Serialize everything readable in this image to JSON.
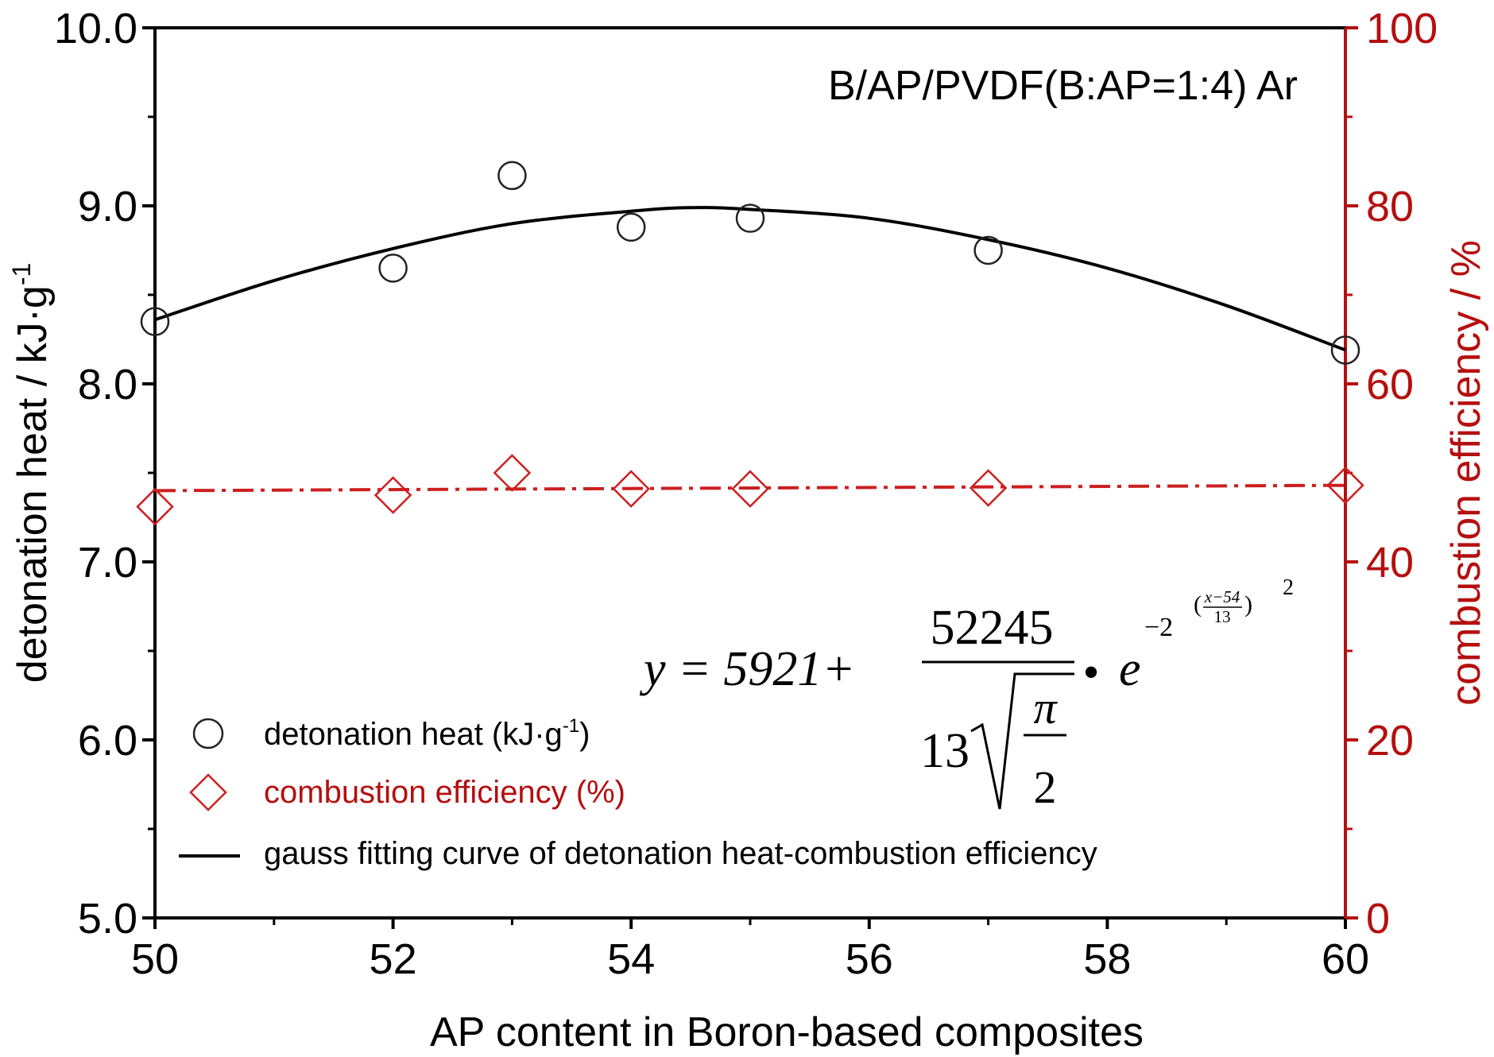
{
  "chart_data": {
    "type": "scatter",
    "annotation": "B/AP/PVDF(B:AP=1:4) Ar",
    "xlabel": "AP content in Boron-based composites",
    "ylabel_left": "detonation heat / kJ·g",
    "ylabel_left_sup": "-1",
    "ylabel_right": "combustion efficiency / %",
    "xlim": [
      50,
      60
    ],
    "ylim_left": [
      5.0,
      10.0
    ],
    "ylim_right": [
      0,
      100
    ],
    "x_ticks": [
      "50",
      "52",
      "54",
      "56",
      "58",
      "60"
    ],
    "y_ticks_left": [
      "5.0",
      "6.0",
      "7.0",
      "8.0",
      "9.0",
      "10.0"
    ],
    "y_ticks_right": [
      "0",
      "20",
      "40",
      "60",
      "80",
      "100"
    ],
    "grid": false,
    "series": [
      {
        "name": "detonation heat (kJ·g",
        "name_sup": "-1",
        "name_suffix": ")",
        "marker": "circle",
        "axis": "left",
        "color": "#222222",
        "x": [
          50,
          52,
          53,
          54,
          55,
          57,
          60
        ],
        "values": [
          8.35,
          8.65,
          9.17,
          8.88,
          8.93,
          8.75,
          8.19
        ]
      },
      {
        "name": "combustion efficiency (%)",
        "marker": "diamond",
        "axis": "right",
        "color": "#cc1f1f",
        "x": [
          50,
          52,
          53,
          54,
          55,
          57,
          60
        ],
        "values": [
          46.2,
          47.5,
          50.0,
          48.2,
          48.2,
          48.3,
          48.6
        ]
      }
    ],
    "fit_curve": {
      "name": "gauss fitting curve of detonation heat-combustion efficiency",
      "axis": "left",
      "color": "#000000",
      "x": [
        50,
        51,
        52,
        53,
        54,
        54.5,
        55,
        56,
        57,
        58,
        59,
        60
      ],
      "values": [
        8.36,
        8.58,
        8.76,
        8.9,
        8.97,
        8.99,
        8.98,
        8.93,
        8.81,
        8.65,
        8.44,
        8.19
      ]
    },
    "reference_line": {
      "axis": "right",
      "style": "dash-dot",
      "color": "#cc1f1f",
      "x": [
        50,
        60
      ],
      "values": [
        48.0,
        48.6
      ]
    },
    "equation": {
      "lhs": "y = 5921+",
      "numerator": "52245",
      "denominator_coef": "13",
      "pi": "π",
      "two": "2",
      "bullet": "•",
      "e": "e",
      "exp_base": "−2",
      "exp_frac_num": "x−54",
      "exp_frac_den": "13",
      "exp_open": "(",
      "exp_close": ")",
      "exp_power": "2"
    },
    "colors": {
      "left_axis": "#000000",
      "right_axis": "#b50f0f",
      "detonation": "#222222",
      "efficiency": "#cc1f1f"
    }
  }
}
